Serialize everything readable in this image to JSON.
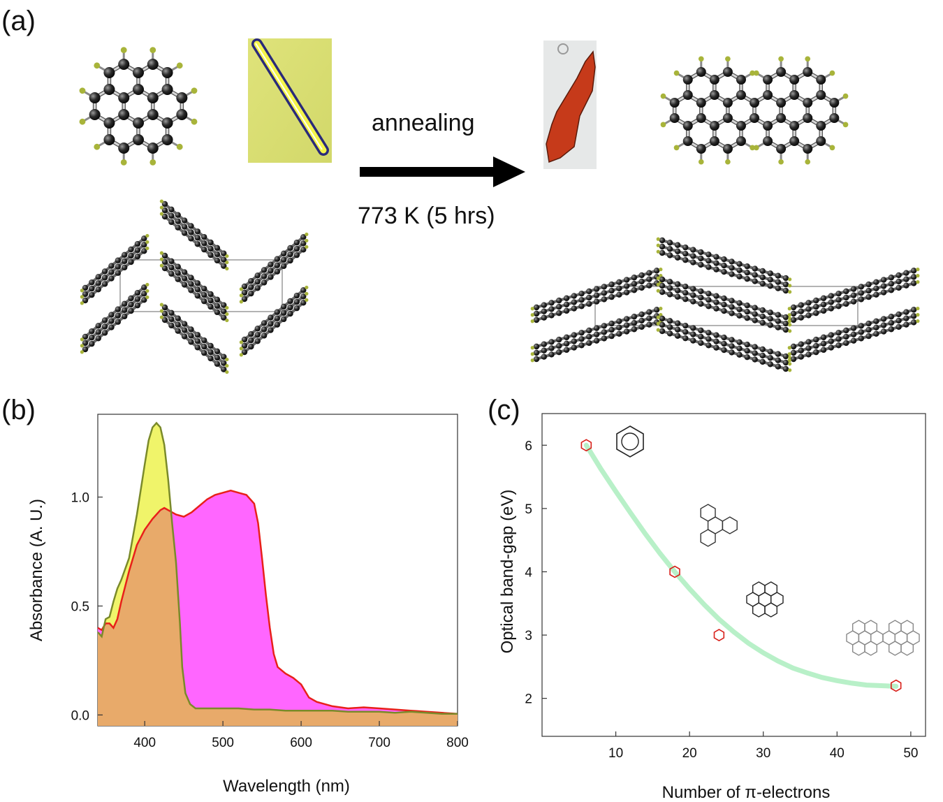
{
  "panels": {
    "a": "(a)",
    "b": "(b)",
    "c": "(c)"
  },
  "scheme": {
    "arrow_label_top": "annealing",
    "arrow_label_bottom": "773 K (5 hrs)"
  },
  "colors": {
    "carbon": "#1a1a1a",
    "hydrogen": "#a8b43a",
    "crystal_yellow": "#e6ea6a",
    "crystal_red": "#c83a18",
    "spectrum_yellow_fill": "#f0f46a",
    "spectrum_yellow_line": "#7a8a2a",
    "spectrum_magenta_fill": "#ff66ff",
    "spectrum_red_line": "#e8201a",
    "spectrum_overlap_fill": "#e8aa6a",
    "fit_curve": "#b8f0c8",
    "marker": "#d8201a"
  },
  "chart_data": [
    {
      "type": "area",
      "title": "",
      "xlabel": "Wavelength (nm)",
      "ylabel": "Absorbance (A. U.)",
      "xlim": [
        340,
        800
      ],
      "ylim": [
        -0.05,
        1.38
      ],
      "xticks": [
        400,
        500,
        600,
        700,
        800
      ],
      "yticks": [
        0.0,
        0.5,
        1.0
      ],
      "xtick_labels": [
        "400",
        "500",
        "600",
        "700",
        "800"
      ],
      "ytick_labels": [
        "0.0",
        "0.5",
        "1.0"
      ],
      "grid": false,
      "series": [
        {
          "points": [
            [
              340,
              0.38
            ],
            [
              345,
              0.36
            ],
            [
              350,
              0.44
            ],
            [
              355,
              0.45
            ],
            [
              360,
              0.52
            ],
            [
              365,
              0.58
            ],
            [
              370,
              0.62
            ],
            [
              380,
              0.72
            ],
            [
              390,
              0.92
            ],
            [
              400,
              1.15
            ],
            [
              405,
              1.26
            ],
            [
              410,
              1.32
            ],
            [
              415,
              1.34
            ],
            [
              420,
              1.32
            ],
            [
              425,
              1.24
            ],
            [
              430,
              1.08
            ],
            [
              435,
              0.88
            ],
            [
              440,
              0.7
            ],
            [
              445,
              0.42
            ],
            [
              448,
              0.22
            ],
            [
              452,
              0.1
            ],
            [
              458,
              0.05
            ],
            [
              465,
              0.03
            ],
            [
              480,
              0.03
            ],
            [
              500,
              0.03
            ],
            [
              520,
              0.03
            ],
            [
              540,
              0.025
            ],
            [
              560,
              0.025
            ],
            [
              580,
              0.02
            ],
            [
              600,
              0.02
            ],
            [
              620,
              0.02
            ],
            [
              640,
              0.02
            ],
            [
              660,
              0.015
            ],
            [
              680,
              0.015
            ],
            [
              700,
              0.015
            ],
            [
              720,
              0.01
            ],
            [
              740,
              0.015
            ],
            [
              760,
              0.01
            ],
            [
              780,
              0.005
            ],
            [
              800,
              0.005
            ]
          ]
        },
        {
          "points": [
            [
              340,
              0.4
            ],
            [
              345,
              0.39
            ],
            [
              350,
              0.42
            ],
            [
              355,
              0.42
            ],
            [
              360,
              0.4
            ],
            [
              365,
              0.44
            ],
            [
              370,
              0.52
            ],
            [
              380,
              0.66
            ],
            [
              390,
              0.78
            ],
            [
              400,
              0.85
            ],
            [
              410,
              0.9
            ],
            [
              420,
              0.94
            ],
            [
              425,
              0.95
            ],
            [
              430,
              0.94
            ],
            [
              440,
              0.92
            ],
            [
              450,
              0.91
            ],
            [
              460,
              0.93
            ],
            [
              470,
              0.96
            ],
            [
              480,
              0.99
            ],
            [
              490,
              1.01
            ],
            [
              500,
              1.02
            ],
            [
              510,
              1.03
            ],
            [
              520,
              1.02
            ],
            [
              530,
              1.01
            ],
            [
              540,
              0.97
            ],
            [
              545,
              0.88
            ],
            [
              550,
              0.72
            ],
            [
              555,
              0.55
            ],
            [
              560,
              0.4
            ],
            [
              565,
              0.28
            ],
            [
              570,
              0.22
            ],
            [
              580,
              0.19
            ],
            [
              590,
              0.17
            ],
            [
              600,
              0.14
            ],
            [
              610,
              0.08
            ],
            [
              620,
              0.06
            ],
            [
              630,
              0.05
            ],
            [
              640,
              0.04
            ],
            [
              660,
              0.03
            ],
            [
              680,
              0.035
            ],
            [
              700,
              0.03
            ],
            [
              720,
              0.025
            ],
            [
              740,
              0.02
            ],
            [
              760,
              0.015
            ],
            [
              780,
              0.01
            ],
            [
              800,
              0.005
            ]
          ]
        }
      ]
    },
    {
      "type": "scatter",
      "title": "",
      "xlabel": "Number of π-electrons",
      "ylabel": "Optical band-gap (eV)",
      "xlim": [
        0,
        52
      ],
      "ylim": [
        1.4,
        6.5
      ],
      "xticks": [
        10,
        20,
        30,
        40,
        50
      ],
      "yticks": [
        2,
        3,
        4,
        5,
        6
      ],
      "xtick_labels": [
        "10",
        "20",
        "30",
        "40",
        "50"
      ],
      "ytick_labels": [
        "2",
        "3",
        "4",
        "5",
        "6"
      ],
      "grid": false,
      "points": [
        [
          6,
          6.0
        ],
        [
          18,
          4.0
        ],
        [
          24,
          3.0
        ],
        [
          48,
          2.2
        ]
      ],
      "fit_curve": [
        [
          6,
          6.0
        ],
        [
          8,
          5.62
        ],
        [
          10,
          5.27
        ],
        [
          12,
          4.93
        ],
        [
          14,
          4.6
        ],
        [
          16,
          4.29
        ],
        [
          18,
          4.0
        ],
        [
          20,
          3.73
        ],
        [
          22,
          3.48
        ],
        [
          24,
          3.25
        ],
        [
          26,
          3.05
        ],
        [
          28,
          2.87
        ],
        [
          30,
          2.72
        ],
        [
          32,
          2.59
        ],
        [
          34,
          2.48
        ],
        [
          36,
          2.4
        ],
        [
          38,
          2.33
        ],
        [
          40,
          2.28
        ],
        [
          42,
          2.24
        ],
        [
          44,
          2.21
        ],
        [
          46,
          2.2
        ],
        [
          48,
          2.19
        ]
      ]
    }
  ]
}
